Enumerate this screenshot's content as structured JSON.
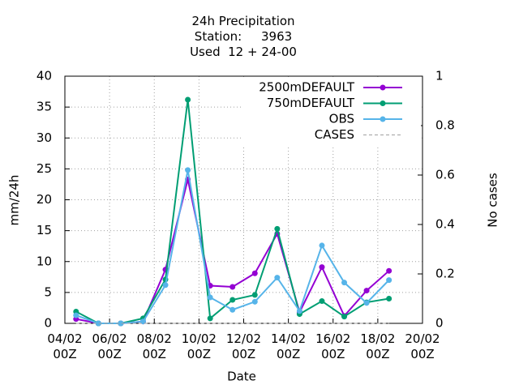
{
  "chart_data": {
    "type": "line",
    "title": [
      "24h Precipitation",
      "Station:     3963",
      "Used  12 + 24-00"
    ],
    "x_label": "Date",
    "y_label": "mm/24h",
    "y2_label": "No cases",
    "x": [
      0.5,
      1.5,
      2.5,
      3.5,
      4.5,
      5.5,
      6.5,
      7.5,
      8.5,
      9.5,
      10.5,
      11.5,
      12.5,
      13.5,
      14.5
    ],
    "xlim": [
      0,
      16
    ],
    "xticks": [
      {
        "value": 0,
        "label": "04/02\n00Z"
      },
      {
        "value": 2,
        "label": "06/02\n00Z"
      },
      {
        "value": 4,
        "label": "08/02\n00Z"
      },
      {
        "value": 6,
        "label": "10/02\n00Z"
      },
      {
        "value": 8,
        "label": "12/02\n00Z"
      },
      {
        "value": 10,
        "label": "14/02\n00Z"
      },
      {
        "value": 12,
        "label": "16/02\n00Z"
      },
      {
        "value": 14,
        "label": "18/02\n00Z"
      },
      {
        "value": 16,
        "label": "20/02\n00Z"
      }
    ],
    "ylim": [
      0,
      40
    ],
    "yticks": [
      0,
      5,
      10,
      15,
      20,
      25,
      30,
      35,
      40
    ],
    "y2lim": [
      0,
      1
    ],
    "y2ticks": [
      0,
      0.2,
      0.4,
      0.6,
      0.8,
      1
    ],
    "grid": true,
    "legend": "top-right",
    "series": [
      {
        "name": "2500mDEFAULT",
        "color": "#9400d3",
        "values": [
          0.7,
          0,
          0,
          0.3,
          8.7,
          23.3,
          6.1,
          5.9,
          8.1,
          14.5,
          1.8,
          9.1,
          1.2,
          5.3,
          8.5
        ]
      },
      {
        "name": "750mDEFAULT",
        "color": "#009e73",
        "values": [
          1.9,
          0,
          0,
          0.8,
          7.1,
          36.2,
          0.8,
          3.8,
          4.6,
          15.3,
          1.5,
          3.6,
          1.1,
          3.4,
          4.0
        ]
      },
      {
        "name": "OBS",
        "color": "#56b4e9",
        "values": [
          1.3,
          0,
          0,
          0.3,
          6.2,
          24.8,
          4.2,
          2.2,
          3.5,
          7.4,
          2.0,
          12.6,
          6.6,
          3.3,
          7.0
        ]
      },
      {
        "name": "CASES",
        "color": "#a0a0a0",
        "dashed": true,
        "axis": "y2",
        "values": [
          0,
          0,
          0,
          0,
          0,
          0,
          0,
          0,
          0,
          0,
          0,
          0,
          0,
          0,
          0
        ]
      }
    ]
  }
}
